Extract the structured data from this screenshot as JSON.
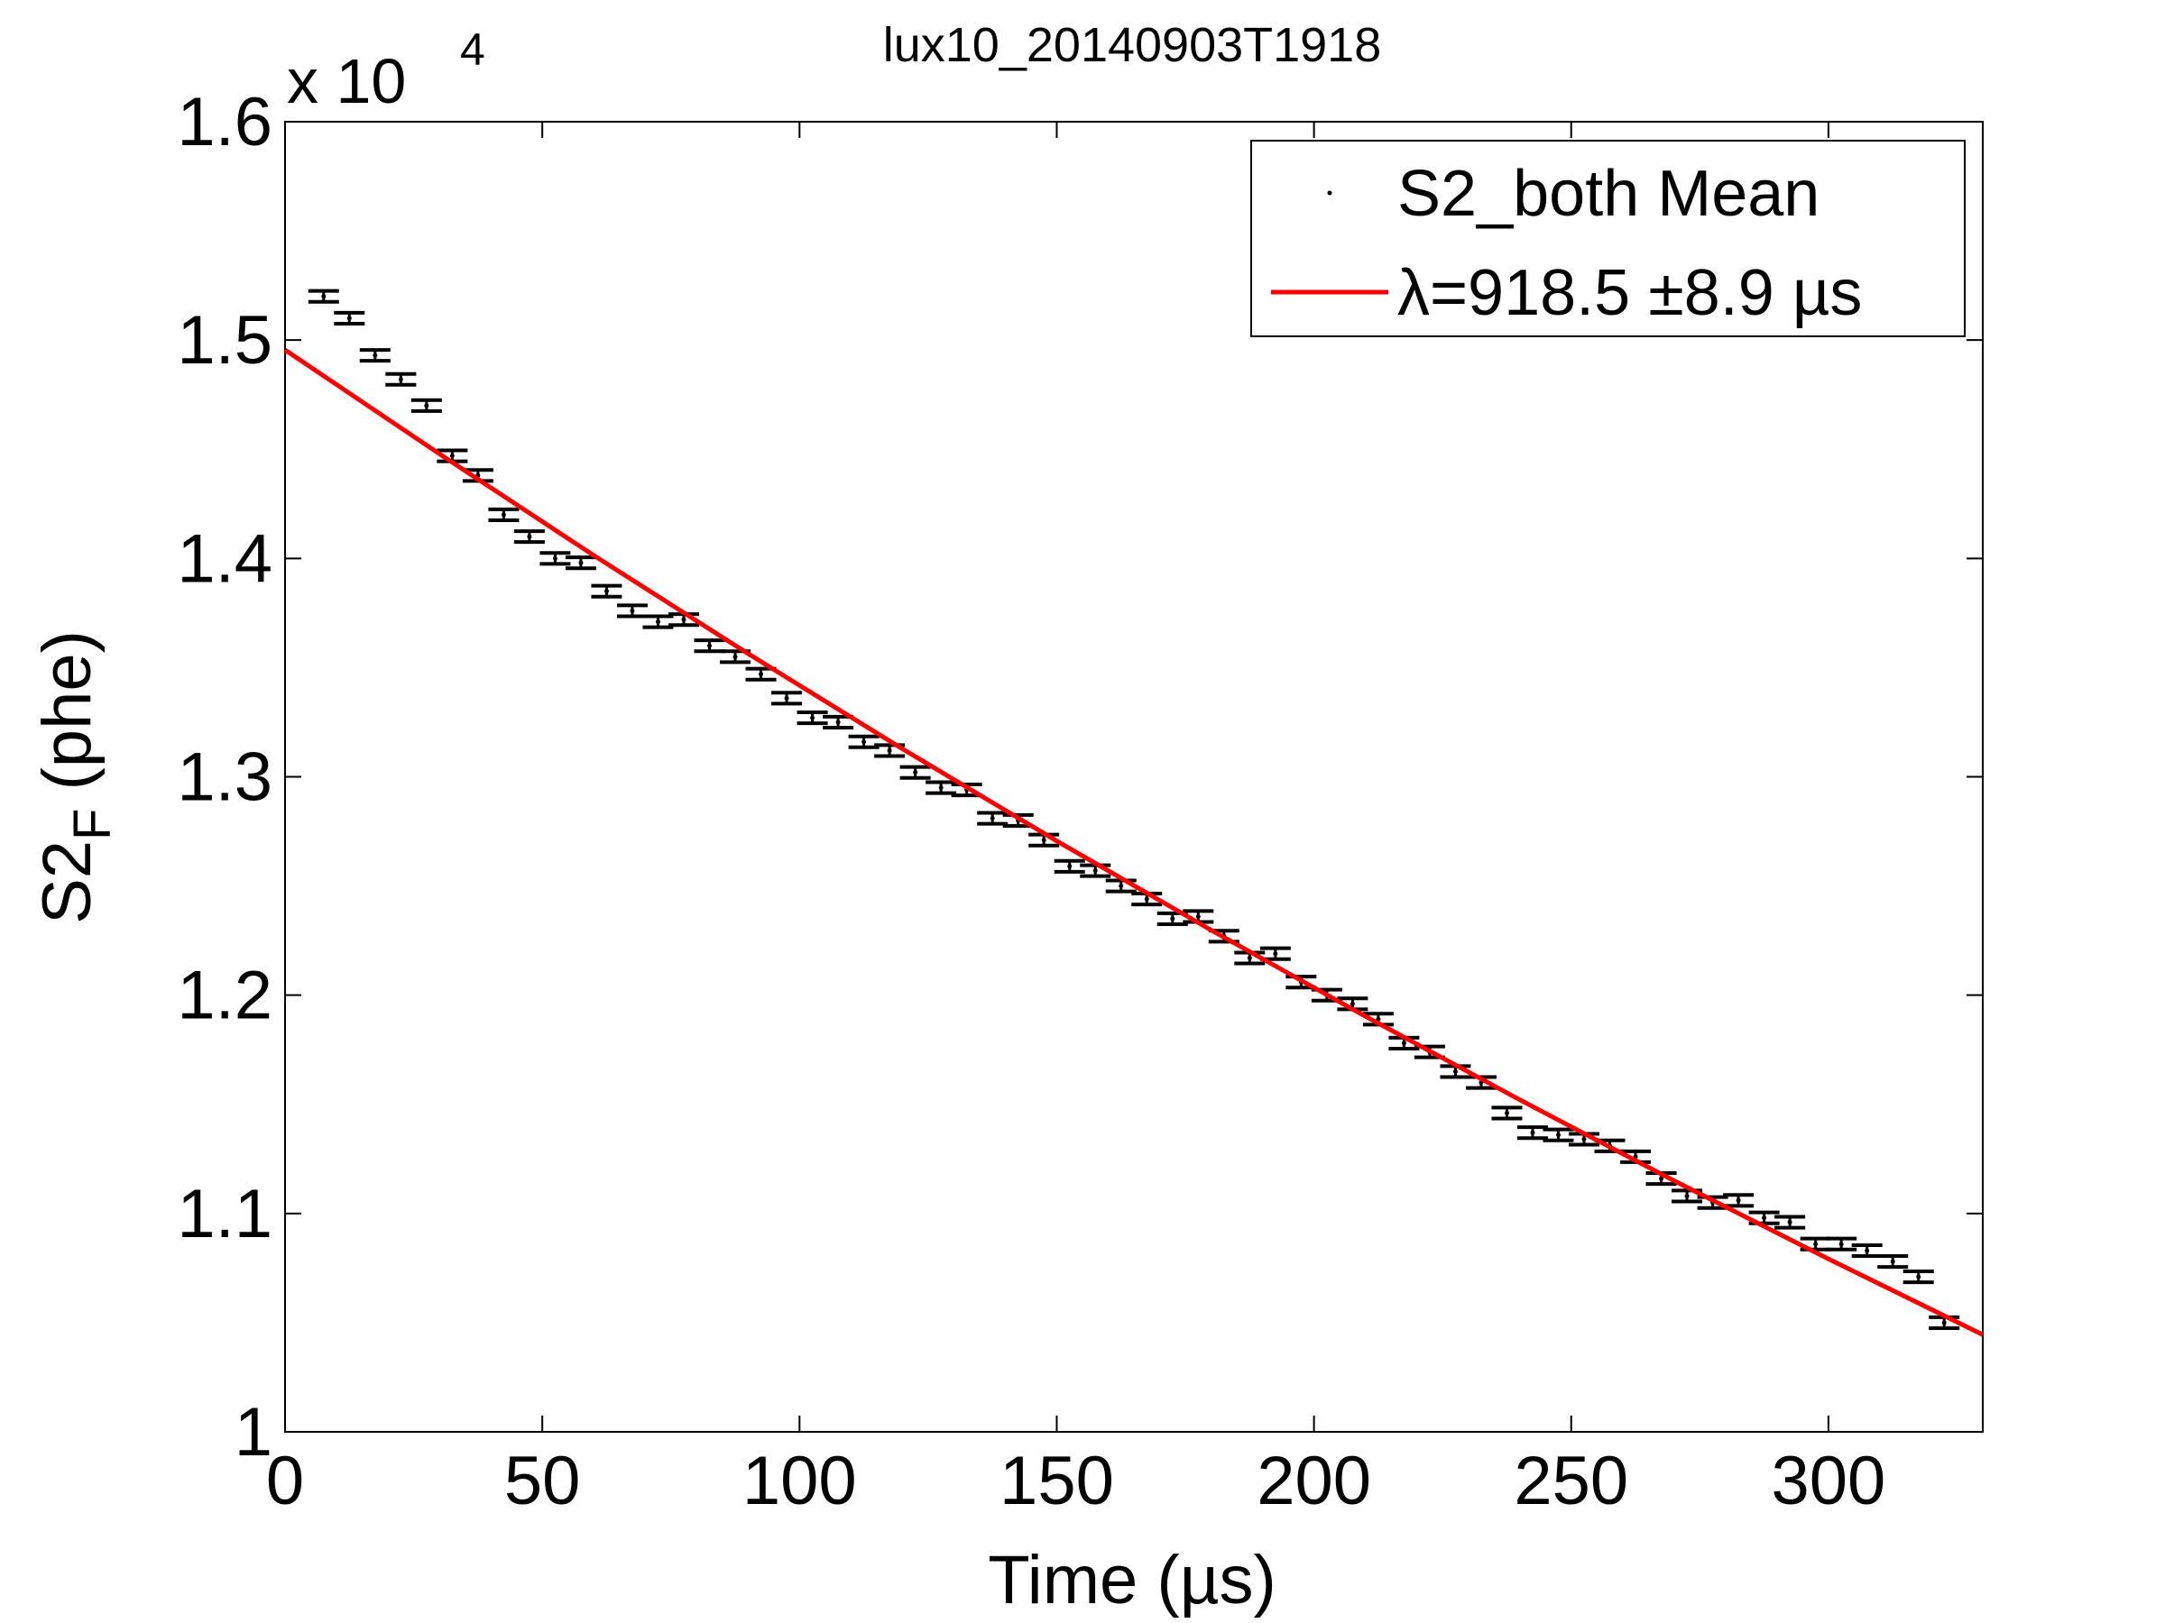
{
  "chart_data": {
    "type": "scatter",
    "title": "lux10_20140903T1918",
    "x_label": "Time (µs)",
    "y_label": {
      "main": "S2",
      "subscript": "F",
      "unit": "(phe)"
    },
    "y_multiplier": {
      "base": "x 10",
      "exponent": "4"
    },
    "xlim": [
      0,
      330
    ],
    "ylim": [
      1,
      1.6
    ],
    "xticks": [
      0,
      50,
      100,
      150,
      200,
      250,
      300
    ],
    "yticks": [
      1,
      1.1,
      1.2,
      1.3,
      1.4,
      1.5,
      1.6
    ],
    "grid": false,
    "legend": "upper right",
    "series": [
      {
        "name": "S2_both Mean",
        "color": "#000000",
        "x": [
          7.5,
          12.5,
          17.5,
          22.5,
          27.5,
          32.5,
          37.5,
          42.5,
          47.5,
          52.5,
          57.5,
          62.5,
          67.5,
          72.5,
          77.5,
          82.5,
          87.5,
          92.5,
          97.5,
          102.5,
          107.5,
          112.5,
          117.5,
          122.5,
          127.5,
          132.5,
          137.5,
          142.5,
          147.5,
          152.5,
          157.5,
          162.5,
          167.5,
          172.5,
          177.5,
          182.5,
          187.5,
          192.5,
          197.5,
          202.5,
          207.5,
          212.5,
          217.5,
          222.5,
          227.5,
          232.5,
          237.5,
          242.5,
          247.5,
          252.5,
          257.5,
          262.5,
          267.5,
          272.5,
          277.5,
          282.5,
          287.5,
          292.5,
          297.5,
          302.5,
          307.5,
          312.5,
          317.5,
          322.5
        ],
        "values": [
          1.52,
          1.51,
          1.493,
          1.482,
          1.47,
          1.447,
          1.438,
          1.42,
          1.41,
          1.4,
          1.398,
          1.385,
          1.376,
          1.371,
          1.372,
          1.36,
          1.355,
          1.347,
          1.336,
          1.327,
          1.325,
          1.316,
          1.312,
          1.302,
          1.295,
          1.294,
          1.281,
          1.28,
          1.271,
          1.259,
          1.257,
          1.25,
          1.244,
          1.235,
          1.236,
          1.227,
          1.217,
          1.219,
          1.206,
          1.2,
          1.196,
          1.189,
          1.178,
          1.174,
          1.165,
          1.16,
          1.146,
          1.137,
          1.136,
          1.134,
          1.131,
          1.126,
          1.116,
          1.108,
          1.105,
          1.106,
          1.098,
          1.096,
          1.086,
          1.086,
          1.083,
          1.078,
          1.071,
          1.05
        ],
        "errors": [
          0.0025,
          0.0025,
          0.0025,
          0.0025,
          0.0025,
          0.0025,
          0.0025,
          0.0025,
          0.0025,
          0.0025,
          0.0025,
          0.0025,
          0.0025,
          0.0025,
          0.0025,
          0.0025,
          0.0025,
          0.0025,
          0.0025,
          0.0025,
          0.0025,
          0.0025,
          0.0025,
          0.0025,
          0.0025,
          0.0025,
          0.0025,
          0.0025,
          0.0025,
          0.0025,
          0.0025,
          0.0025,
          0.0025,
          0.0025,
          0.0025,
          0.0025,
          0.0025,
          0.0025,
          0.0025,
          0.0025,
          0.0025,
          0.0025,
          0.0025,
          0.0025,
          0.0025,
          0.0025,
          0.0025,
          0.0025,
          0.0025,
          0.0025,
          0.0025,
          0.0025,
          0.0025,
          0.0025,
          0.0025,
          0.0025,
          0.0025,
          0.0025,
          0.0025,
          0.0025,
          0.0025,
          0.0025,
          0.0025,
          0.0025
        ]
      },
      {
        "name": "λ=918.5 ±8.9 µs",
        "type": "line",
        "color": "#ff0000",
        "x": [
          0,
          30,
          60,
          90,
          120,
          150,
          180,
          210,
          240,
          270,
          300,
          330
        ],
        "values": [
          1.4955,
          1.4479,
          1.4014,
          1.3564,
          1.3128,
          1.2706,
          1.2298,
          1.1903,
          1.1521,
          1.115,
          1.0792,
          1.0445
        ]
      }
    ]
  }
}
